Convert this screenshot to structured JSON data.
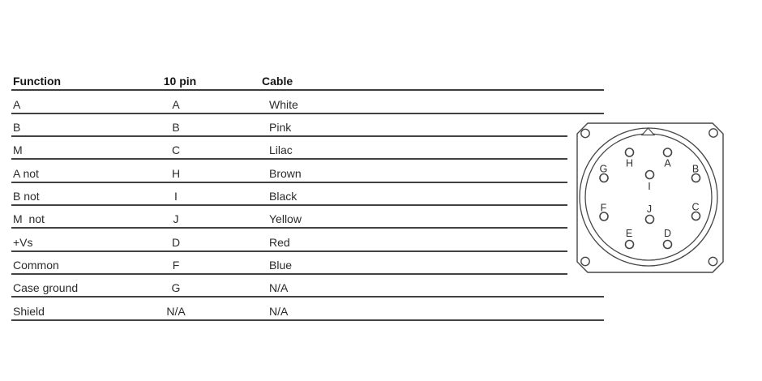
{
  "table": {
    "headers": {
      "function": "Function",
      "pin": "10 pin",
      "cable": "Cable"
    },
    "rows": [
      {
        "function": "A",
        "pin": "A",
        "cable": "White"
      },
      {
        "function": "B",
        "pin": "B",
        "cable": "Pink"
      },
      {
        "function": "M",
        "pin": "C",
        "cable": "Lilac"
      },
      {
        "function": "A not",
        "pin": "H",
        "cable": "Brown"
      },
      {
        "function": "B not",
        "pin": "I",
        "cable": "Black"
      },
      {
        "function": "M  not",
        "pin": "J",
        "cable": "Yellow"
      },
      {
        "function": "+Vs",
        "pin": "D",
        "cable": "Red"
      },
      {
        "function": "Common",
        "pin": "F",
        "cable": "Blue"
      },
      {
        "function": "Case ground",
        "pin": "G",
        "cable": "N/A"
      },
      {
        "function": "Shield",
        "pin": "N/A",
        "cable": "N/A"
      }
    ]
  },
  "connector": {
    "pins": [
      "H",
      "A",
      "G",
      "B",
      "I",
      "F",
      "C",
      "J",
      "E",
      "D"
    ]
  },
  "colors": {
    "rule_line": "#3d3d3d",
    "diagram_outline": "#474747",
    "text": "#2b2b2b"
  }
}
